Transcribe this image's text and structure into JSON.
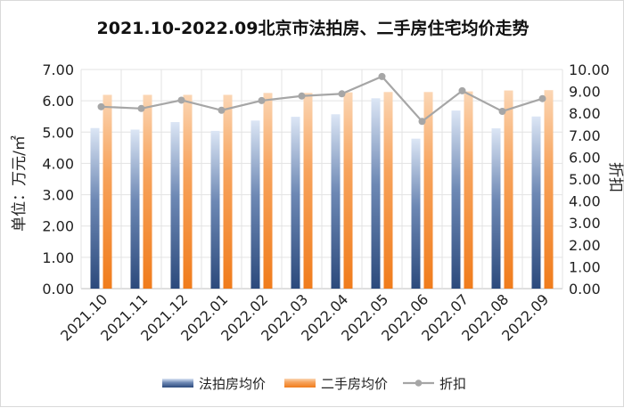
{
  "chart_data": {
    "type": "bar",
    "title": "2021.10-2022.09北京市法拍房、二手房住宅均价走势",
    "categories": [
      "2021.10",
      "2021.11",
      "2021.12",
      "2022.01",
      "2022.02",
      "2022.03",
      "2022.04",
      "2022.05",
      "2022.06",
      "2022.07",
      "2022.08",
      "2022.09"
    ],
    "series": [
      {
        "name": "法拍房均价",
        "type": "bar",
        "axis": "left",
        "color": "#3c5a8c",
        "values": [
          5.13,
          5.08,
          5.32,
          5.04,
          5.37,
          5.49,
          5.57,
          6.08,
          4.79,
          5.69,
          5.12,
          5.5
        ]
      },
      {
        "name": "二手房均价",
        "type": "bar",
        "axis": "left",
        "color": "#f4892e",
        "values": [
          6.19,
          6.19,
          6.19,
          6.19,
          6.25,
          6.25,
          6.27,
          6.28,
          6.28,
          6.3,
          6.33,
          6.34
        ]
      },
      {
        "name": "折扣",
        "type": "line",
        "axis": "right",
        "color": "#a6a6a6",
        "values": [
          8.3,
          8.22,
          8.6,
          8.14,
          8.58,
          8.79,
          8.89,
          9.68,
          7.63,
          9.03,
          8.09,
          8.67
        ]
      }
    ],
    "ylabel": "单位：万元/㎡",
    "y2label": "折扣",
    "ylim": [
      0,
      7
    ],
    "y_ticks": [
      "0.00",
      "1.00",
      "2.00",
      "3.00",
      "4.00",
      "5.00",
      "6.00",
      "7.00"
    ],
    "y2lim": [
      0,
      10
    ],
    "y2_ticks": [
      "0.00",
      "1.00",
      "2.00",
      "3.00",
      "4.00",
      "5.00",
      "6.00",
      "7.00",
      "8.00",
      "9.00",
      "10.00"
    ],
    "grid": true,
    "legend_position": "bottom"
  }
}
